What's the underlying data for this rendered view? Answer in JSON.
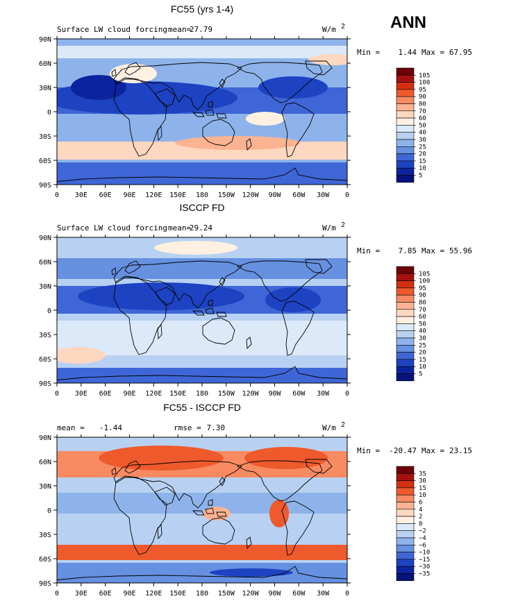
{
  "season": "ANN",
  "panels": [
    {
      "id": "model",
      "title": "FC55 (yrs 1-4)",
      "variable": "Surface LW cloud forcing",
      "mean_label": "mean=",
      "mean": "27.79",
      "units_base": "W/m",
      "units_exp": "2",
      "min_label": "Min =",
      "min": "1.44",
      "max_label": "Max =",
      "max": "67.95",
      "levels": [
        "105",
        "100",
        "95",
        "90",
        "80",
        "70",
        "60",
        "50",
        "40",
        "30",
        "25",
        "20",
        "15",
        "10",
        "5"
      ],
      "colors": [
        "#6e0007",
        "#a5120e",
        "#d3300f",
        "#ee5a2c",
        "#f88b62",
        "#fbb391",
        "#fdd7bf",
        "#fff0e2",
        "#dbe9f8",
        "#b8d1f2",
        "#8eb3ea",
        "#6690e0",
        "#3e66d6",
        "#1d43c3",
        "#0b249e",
        "#05137a"
      ]
    },
    {
      "id": "obs",
      "title": "ISCCP FD",
      "variable": "Surface LW cloud forcing",
      "mean_label": "mean=",
      "mean": "29.24",
      "units_base": "W/m",
      "units_exp": "2",
      "min_label": "Min =",
      "min": "7.85",
      "max_label": "Max =",
      "max": "55.96",
      "levels": [
        "105",
        "100",
        "95",
        "90",
        "80",
        "70",
        "60",
        "50",
        "40",
        "30",
        "25",
        "20",
        "15",
        "10",
        "5"
      ],
      "colors": [
        "#6e0007",
        "#a5120e",
        "#d3300f",
        "#ee5a2c",
        "#f88b62",
        "#fbb391",
        "#fdd7bf",
        "#fff0e2",
        "#dbe9f8",
        "#b8d1f2",
        "#8eb3ea",
        "#6690e0",
        "#3e66d6",
        "#1d43c3",
        "#0b249e",
        "#05137a"
      ]
    },
    {
      "id": "diff",
      "title": "FC55 - ISCCP FD",
      "variable": "",
      "mean_label": "mean =",
      "mean": "-1.44",
      "rmse_label": "rmse =",
      "rmse": "7.30",
      "units_base": "W/m",
      "units_exp": "2",
      "min_label": "Min =",
      "min": "-20.47",
      "max_label": "Max =",
      "max": "23.15",
      "levels": [
        "35",
        "30",
        "15",
        "10",
        "6",
        "4",
        "2",
        "0",
        "−2",
        "−4",
        "−6",
        "−10",
        "−15",
        "−30",
        "−35"
      ],
      "colors": [
        "#6e0007",
        "#a5120e",
        "#d3300f",
        "#ee5a2c",
        "#f88b62",
        "#fbb391",
        "#fdd7bf",
        "#fff0e2",
        "#dbe9f8",
        "#b8d1f2",
        "#8eb3ea",
        "#6690e0",
        "#3e66d6",
        "#1d43c3",
        "#0b249e",
        "#05137a"
      ]
    }
  ],
  "axes": {
    "lat_labels": [
      "90N",
      "60N",
      "30N",
      "0",
      "30S",
      "60S",
      "90S"
    ],
    "lon_labels": [
      "0",
      "30E",
      "60E",
      "90E",
      "120E",
      "150E",
      "180",
      "150W",
      "120W",
      "90W",
      "60W",
      "30W",
      "0"
    ]
  }
}
